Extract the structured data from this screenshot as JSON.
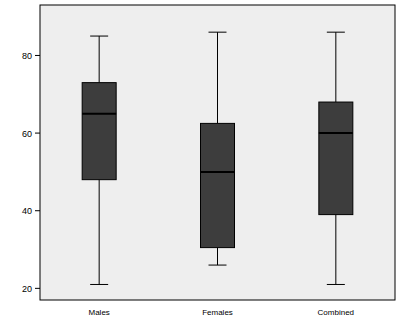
{
  "chart_data": {
    "type": "box",
    "categories": [
      "Males",
      "Females",
      "Combined"
    ],
    "stats": [
      {
        "min": 21,
        "q1": 48,
        "median": 65,
        "q3": 73,
        "max": 85
      },
      {
        "min": 26,
        "q1": 30.5,
        "median": 50,
        "q3": 62.5,
        "max": 86
      },
      {
        "min": 21,
        "q1": 39,
        "median": 60,
        "q3": 68,
        "max": 86
      }
    ],
    "color": "#3d3d3d",
    "ylim": [
      17,
      93
    ],
    "yticks": [
      20,
      40,
      60,
      80
    ],
    "grid": false
  }
}
